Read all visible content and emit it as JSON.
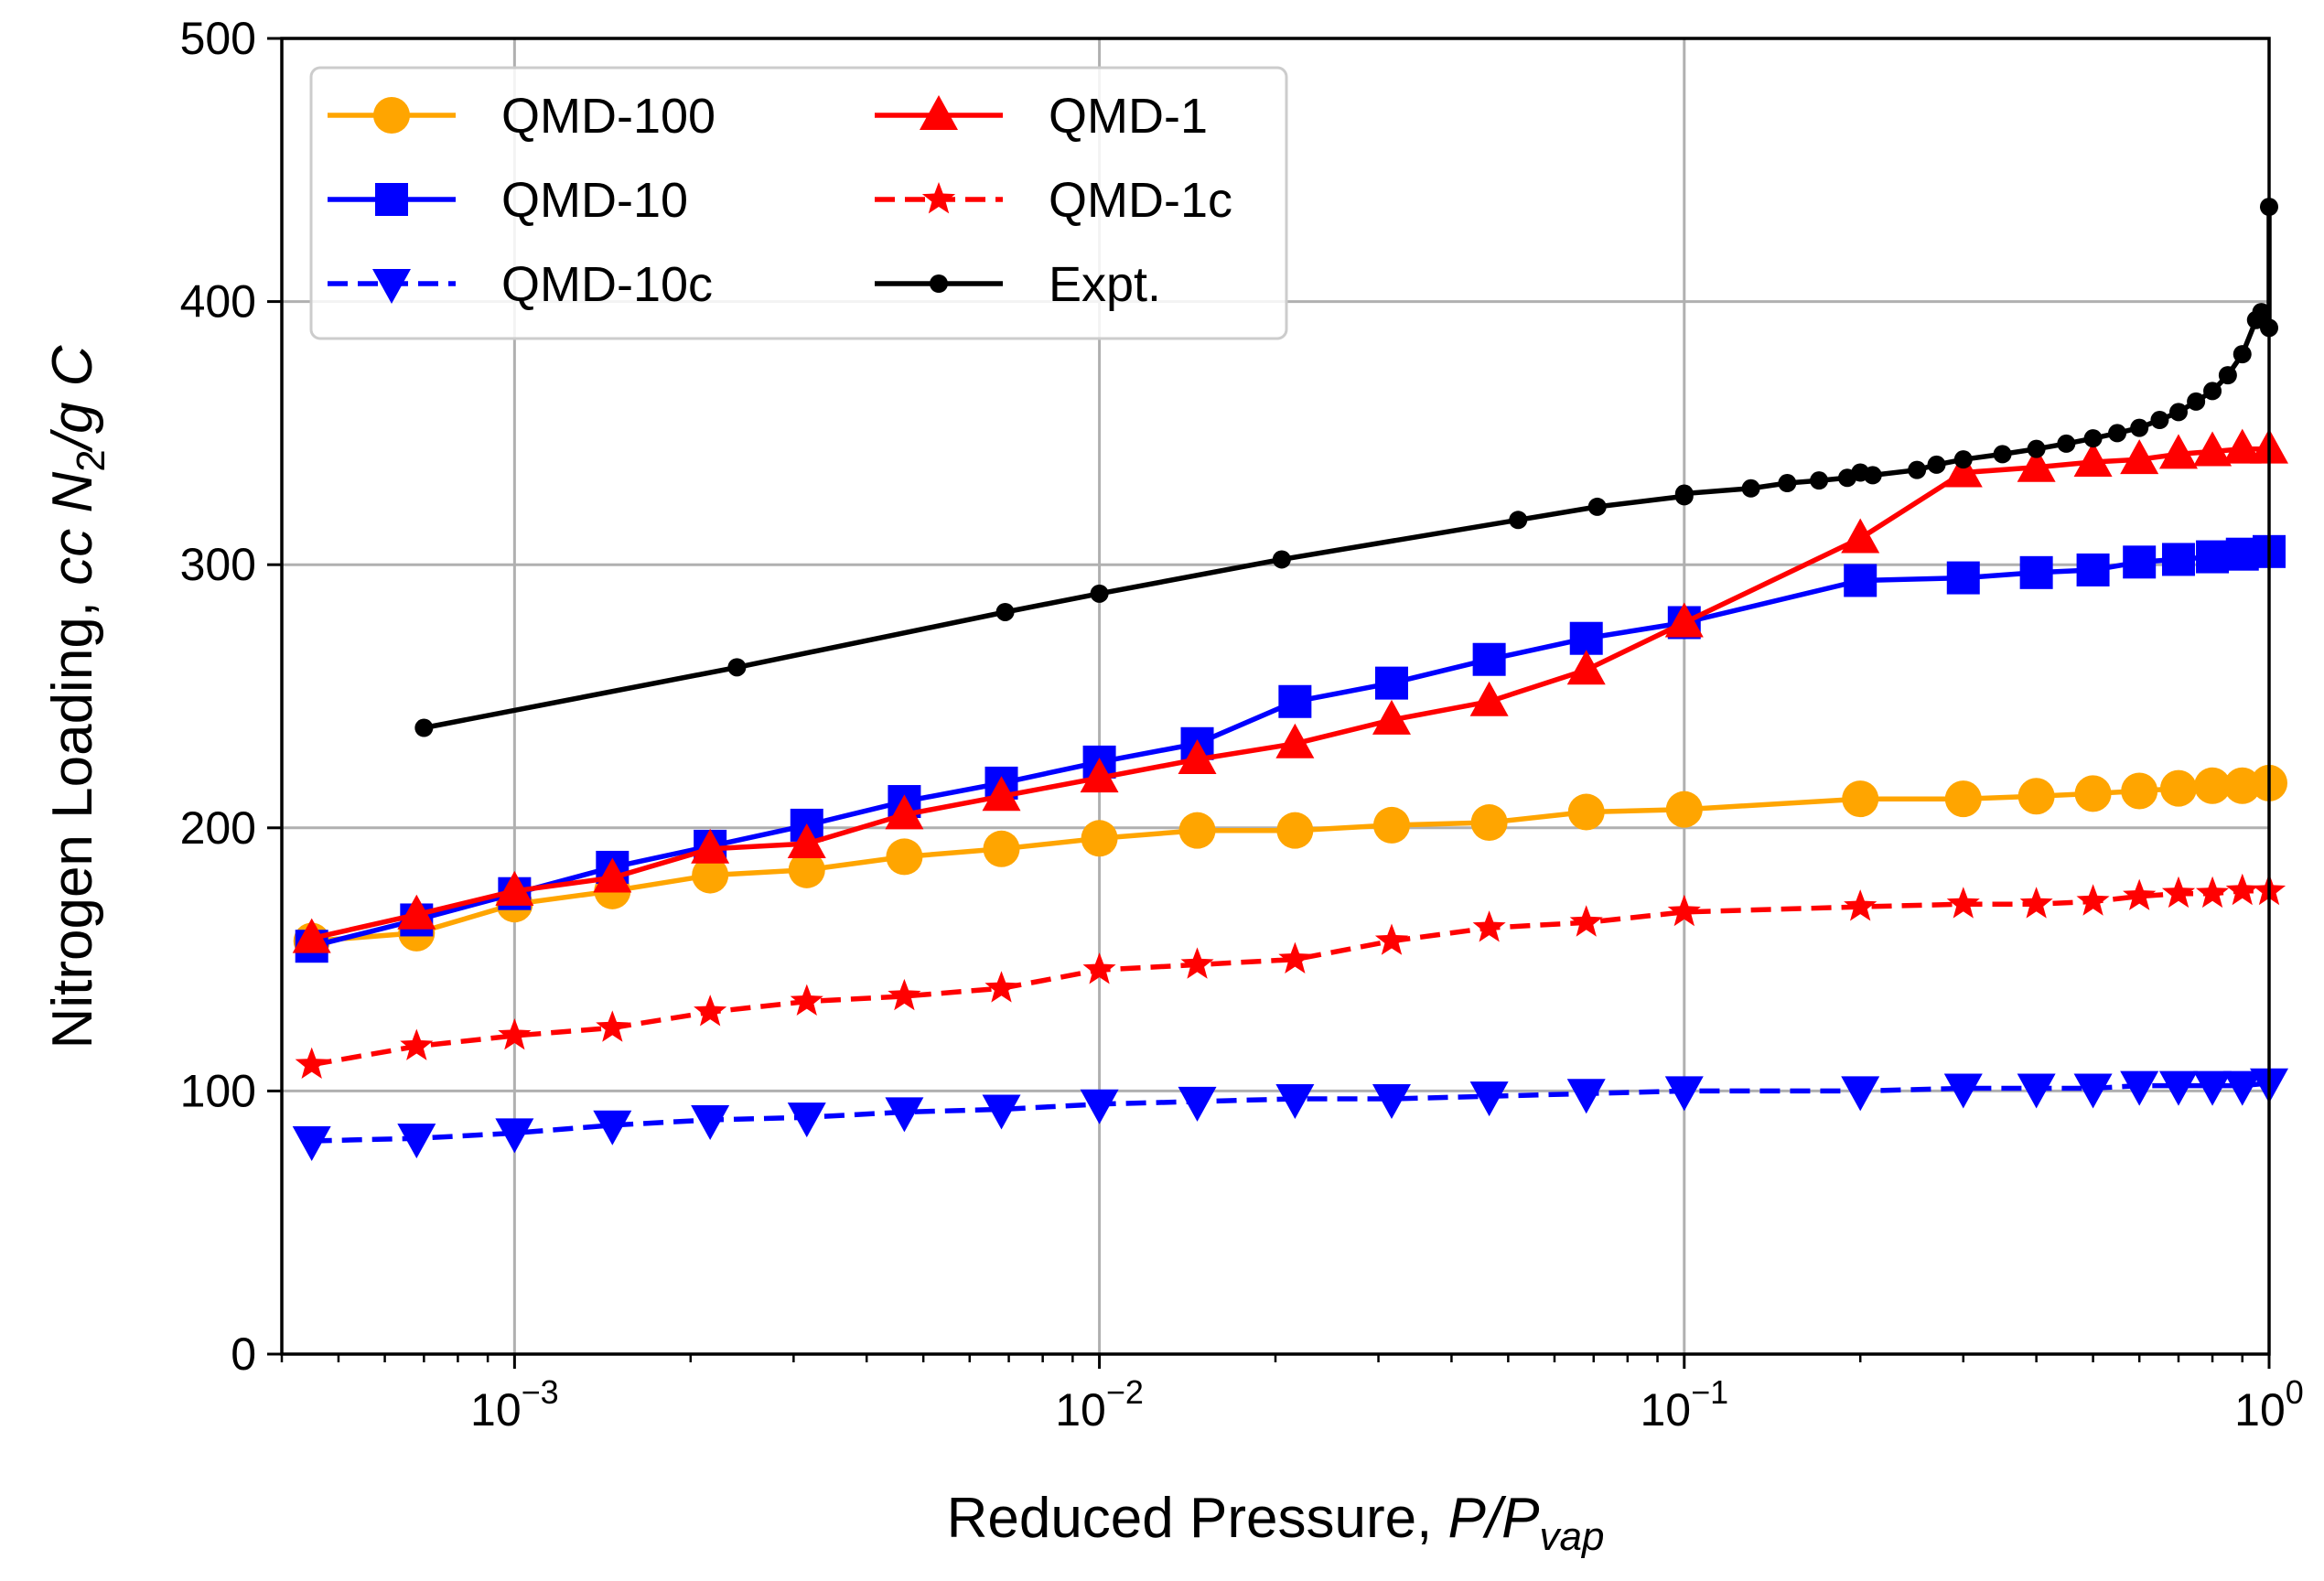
{
  "chart_data": {
    "type": "line",
    "xscale": "log",
    "xlim": [
      0.0004,
      1.0
    ],
    "ylim": [
      0,
      500
    ],
    "grid": true,
    "legend_position": "top-left",
    "legend_columns": 2,
    "xlabel": {
      "prefix": "Reduced Pressure, ",
      "var": "P/P",
      "sub": "vap"
    },
    "ylabel": {
      "prefix": "Nitrogen Loading, ",
      "cc": "cc N",
      "sub": "2",
      "suffix": "/g C"
    },
    "y_ticks": [
      0,
      100,
      200,
      300,
      400,
      500
    ],
    "y_tick_labels": [
      "0",
      "100",
      "200",
      "300",
      "400",
      "500"
    ],
    "x_major_ticks": [
      {
        "value": 0.001,
        "base": "10",
        "exp": "−3"
      },
      {
        "value": 0.01,
        "base": "10",
        "exp": "−2"
      },
      {
        "value": 0.1,
        "base": "10",
        "exp": "−1"
      },
      {
        "value": 1.0,
        "base": "10",
        "exp": "0"
      }
    ],
    "series": [
      {
        "name": "QMD-100",
        "color": "#FFA500",
        "marker": "circle",
        "dash": "solid",
        "x": [
          0.00045,
          0.00068,
          0.001,
          0.00147,
          0.00216,
          0.00316,
          0.00464,
          0.0068,
          0.01,
          0.0147,
          0.0216,
          0.0316,
          0.0464,
          0.068,
          0.1,
          0.2,
          0.3,
          0.4,
          0.5,
          0.6,
          0.7,
          0.8,
          0.9,
          1.0
        ],
        "y": [
          157,
          160,
          171,
          176,
          182,
          184,
          189,
          192,
          196,
          199,
          199,
          201,
          202,
          206,
          207,
          211,
          211,
          212,
          213,
          214,
          215,
          216,
          216,
          217
        ]
      },
      {
        "name": "QMD-10",
        "color": "#0000FF",
        "marker": "square",
        "dash": "solid",
        "x": [
          0.00045,
          0.00068,
          0.001,
          0.00147,
          0.00216,
          0.00316,
          0.00464,
          0.0068,
          0.01,
          0.0147,
          0.0216,
          0.0316,
          0.0464,
          0.068,
          0.1,
          0.2,
          0.3,
          0.4,
          0.5,
          0.6,
          0.7,
          0.8,
          0.9,
          1.0
        ],
        "y": [
          155,
          165,
          175,
          185,
          193,
          201,
          210,
          217,
          225,
          232,
          248,
          255,
          264,
          272,
          278,
          294,
          295,
          297,
          298,
          301,
          302,
          303,
          304,
          305
        ]
      },
      {
        "name": "QMD-10c",
        "color": "#0000FF",
        "marker": "triangle-down",
        "dash": "dashed",
        "x": [
          0.00045,
          0.00068,
          0.001,
          0.00147,
          0.00216,
          0.00316,
          0.00464,
          0.0068,
          0.01,
          0.0147,
          0.0216,
          0.0316,
          0.0464,
          0.068,
          0.1,
          0.2,
          0.3,
          0.4,
          0.5,
          0.6,
          0.7,
          0.8,
          0.9,
          1.0
        ],
        "y": [
          81,
          82,
          84,
          87,
          89,
          90,
          92,
          93,
          95,
          96,
          97,
          97,
          98,
          99,
          100,
          100,
          101,
          101,
          101,
          102,
          102,
          102,
          102,
          103
        ]
      },
      {
        "name": "QMD-1",
        "color": "#FF0000",
        "marker": "triangle-up",
        "dash": "solid",
        "x": [
          0.00045,
          0.00068,
          0.001,
          0.00147,
          0.00216,
          0.00316,
          0.00464,
          0.0068,
          0.01,
          0.0147,
          0.0216,
          0.0316,
          0.0464,
          0.068,
          0.1,
          0.2,
          0.3,
          0.4,
          0.5,
          0.6,
          0.7,
          0.8,
          0.9,
          1.0
        ],
        "y": [
          158,
          167,
          176,
          181,
          192,
          194,
          205,
          212,
          219,
          226,
          232,
          241,
          248,
          260,
          278,
          310,
          335,
          337,
          339,
          340,
          342,
          343,
          344,
          344
        ]
      },
      {
        "name": "QMD-1c",
        "color": "#FF0000",
        "marker": "star",
        "dash": "dashed",
        "x": [
          0.00045,
          0.00068,
          0.001,
          0.00147,
          0.00216,
          0.00316,
          0.00464,
          0.0068,
          0.01,
          0.0147,
          0.0216,
          0.0316,
          0.0464,
          0.068,
          0.1,
          0.2,
          0.3,
          0.4,
          0.5,
          0.6,
          0.7,
          0.8,
          0.9,
          1.0
        ],
        "y": [
          110,
          117,
          121,
          124,
          130,
          134,
          136,
          139,
          146,
          148,
          150,
          157,
          162,
          164,
          168,
          170,
          171,
          171,
          172,
          174,
          175,
          175,
          176,
          176
        ]
      },
      {
        "name": "Expt.",
        "color": "#000000",
        "marker": "dot",
        "dash": "solid",
        "x": [
          0.0007,
          0.0024,
          0.0069,
          0.01,
          0.0205,
          0.052,
          0.071,
          0.1,
          0.1,
          0.13,
          0.15,
          0.17,
          0.19,
          0.2,
          0.21,
          0.25,
          0.27,
          0.3,
          0.35,
          0.4,
          0.45,
          0.5,
          0.55,
          0.6,
          0.65,
          0.7,
          0.75,
          0.8,
          0.85,
          0.9,
          0.95,
          0.97,
          1.0,
          1.0
        ],
        "y": [
          238,
          261,
          282,
          289,
          302,
          317,
          322,
          326,
          327,
          329,
          331,
          332,
          333,
          335,
          334,
          336,
          338,
          340,
          342,
          344,
          346,
          348,
          350,
          352,
          355,
          358,
          362,
          366,
          372,
          380,
          393,
          396,
          390,
          436
        ]
      }
    ]
  }
}
